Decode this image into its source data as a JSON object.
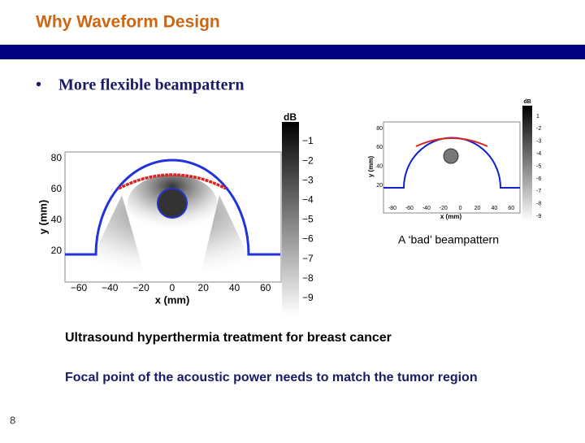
{
  "header": {
    "title": "Why Waveform Design"
  },
  "bullet": "More flexible beampattern",
  "figure_main": {
    "ylabel": "y (mm)",
    "xlabel": "x (mm)",
    "colorbar_title": "dB",
    "xticks": [
      "−60",
      "−40",
      "−20",
      "0",
      "20",
      "40",
      "60"
    ],
    "yticks": [
      "80",
      "60",
      "40",
      "20"
    ],
    "colorbar_ticks": [
      "−1",
      "−2",
      "−3",
      "−4",
      "−5",
      "−6",
      "−7",
      "−8",
      "−9"
    ]
  },
  "figure_bad": {
    "ylabel": "y (mm)",
    "xlabel": "x (mm)",
    "colorbar_title": "dB",
    "xticks": [
      "-80",
      "-60",
      "-40",
      "-20",
      "0",
      "20",
      "40",
      "60"
    ],
    "yticks": [
      "80",
      "60",
      "40",
      "20"
    ],
    "colorbar_ticks": [
      "1",
      "-2",
      "-3",
      "-4",
      "-5",
      "-6",
      "-7",
      "-8",
      "-9"
    ],
    "caption": "A ‘bad’ beampattern"
  },
  "text_lines": [
    "Ultrasound hyperthermia treatment for breast cancer",
    "Focal point of the acoustic power needs to match the tumor region"
  ],
  "page_number": "8"
}
